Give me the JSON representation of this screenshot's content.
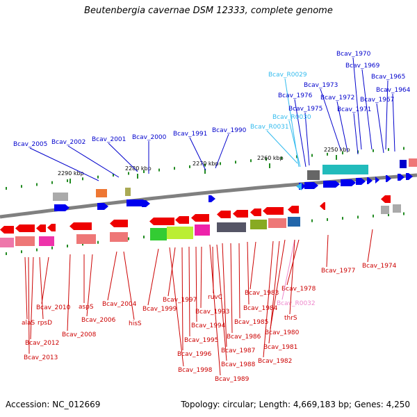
{
  "title": "Beutenbergia cavernae DSM 12333, complete genome",
  "accession": "Accession: NC_012669",
  "topology": "Topology: circular; Length: 4,669,183 bp; Genes: 4,250",
  "colors": {
    "forward_gene": "#0000ee",
    "reverse_gene": "#ee0000",
    "rna_gene": "#33bbee",
    "misc_rna": "#ee88cc",
    "backbone": "#808080",
    "tick": "#228b22",
    "kbp_label": "#000000"
  },
  "ticks": [
    {
      "label": "2290 kbp"
    },
    {
      "label": "2280 kbp"
    },
    {
      "label": "2270 kbp"
    },
    {
      "label": "2260 kbp"
    },
    {
      "label": "2250 kbp"
    }
  ],
  "labels_top": [
    {
      "text": "Bcav_1970",
      "color": "#0000cc"
    },
    {
      "text": "Bcav_1969",
      "color": "#0000cc"
    },
    {
      "text": "Bcav_R0029",
      "color": "#33bbee"
    },
    {
      "text": "Bcav_1965",
      "color": "#0000cc"
    },
    {
      "text": "Bcav_1973",
      "color": "#0000cc"
    },
    {
      "text": "Bcav_1964",
      "color": "#0000cc"
    },
    {
      "text": "Bcav_1976",
      "color": "#0000cc"
    },
    {
      "text": "Bcav_1972",
      "color": "#0000cc"
    },
    {
      "text": "Bcav_1967",
      "color": "#0000cc"
    },
    {
      "text": "Bcav_1975",
      "color": "#0000cc"
    },
    {
      "text": "Bcav_1971",
      "color": "#0000cc"
    },
    {
      "text": "Bcav_R0030",
      "color": "#33bbee"
    },
    {
      "text": "Bcav_R0031",
      "color": "#33bbee"
    },
    {
      "text": "Bcav_1991",
      "color": "#0000cc"
    },
    {
      "text": "Bcav_1990",
      "color": "#0000cc"
    },
    {
      "text": "Bcav_2001",
      "color": "#0000cc"
    },
    {
      "text": "Bcav_2000",
      "color": "#0000cc"
    },
    {
      "text": "Bcav_2002",
      "color": "#0000cc"
    },
    {
      "text": "Bcav_2005",
      "color": "#0000cc"
    }
  ],
  "labels_bottom": [
    {
      "text": "Bcav_1977",
      "color": "#cc0000"
    },
    {
      "text": "Bcav_1974",
      "color": "#cc0000"
    },
    {
      "text": "Bcav_1978",
      "color": "#cc0000"
    },
    {
      "text": "Bcav_1983",
      "color": "#cc0000"
    },
    {
      "text": "Bcav_R0032",
      "color": "#ee88cc"
    },
    {
      "text": "Bcav_1984",
      "color": "#cc0000"
    },
    {
      "text": "thrS",
      "color": "#cc0000"
    },
    {
      "text": "Bcav_1985",
      "color": "#cc0000"
    },
    {
      "text": "Bcav_1980",
      "color": "#cc0000"
    },
    {
      "text": "Bcav_1986",
      "color": "#cc0000"
    },
    {
      "text": "Bcav_1981",
      "color": "#cc0000"
    },
    {
      "text": "Bcav_1987",
      "color": "#cc0000"
    },
    {
      "text": "Bcav_1982",
      "color": "#cc0000"
    },
    {
      "text": "Bcav_1988",
      "color": "#cc0000"
    },
    {
      "text": "Bcav_1989",
      "color": "#cc0000"
    },
    {
      "text": "ruvC",
      "color": "#cc0000"
    },
    {
      "text": "Bcav_1993",
      "color": "#cc0000"
    },
    {
      "text": "Bcav_1994",
      "color": "#cc0000"
    },
    {
      "text": "Bcav_1995",
      "color": "#cc0000"
    },
    {
      "text": "Bcav_1996",
      "color": "#cc0000"
    },
    {
      "text": "Bcav_1997",
      "color": "#cc0000"
    },
    {
      "text": "Bcav_1998",
      "color": "#cc0000"
    },
    {
      "text": "Bcav_1999",
      "color": "#cc0000"
    },
    {
      "text": "Bcav_2004",
      "color": "#cc0000"
    },
    {
      "text": "hisS",
      "color": "#cc0000"
    },
    {
      "text": "aspS",
      "color": "#cc0000"
    },
    {
      "text": "Bcav_2006",
      "color": "#cc0000"
    },
    {
      "text": "Bcav_2008",
      "color": "#cc0000"
    },
    {
      "text": "Bcav_2010",
      "color": "#cc0000"
    },
    {
      "text": "alaS",
      "color": "#cc0000"
    },
    {
      "text": "rpsD",
      "color": "#cc0000"
    },
    {
      "text": "Bcav_2012",
      "color": "#cc0000"
    },
    {
      "text": "Bcav_2013",
      "color": "#cc0000"
    }
  ]
}
